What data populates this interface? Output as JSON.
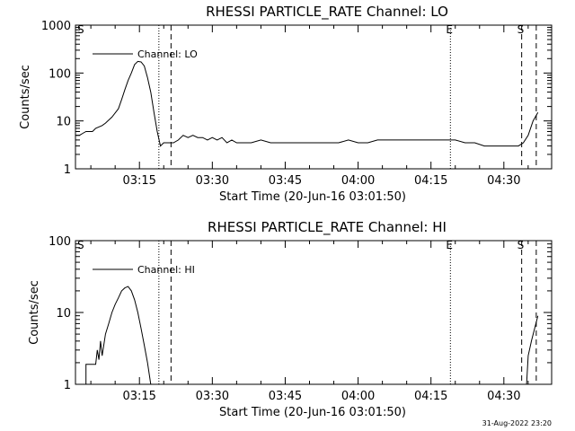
{
  "chart_data": [
    {
      "type": "line",
      "title": "RHESSI PARTICLE_RATE Channel: LO",
      "xlabel": "Start Time (20-Jun-16 03:01:50)",
      "ylabel": "Counts/sec",
      "y_scale": "log",
      "ylim": [
        1,
        1000
      ],
      "xlim": [
        "03:01:50",
        "04:39:50"
      ],
      "x_ticks": [
        "03:15",
        "03:30",
        "03:45",
        "04:00",
        "04:15",
        "04:30"
      ],
      "y_ticks": [
        "1",
        "10",
        "100",
        "1000"
      ],
      "legend": {
        "position": "top-left",
        "entries": [
          "Channel: LO"
        ]
      },
      "grid": false,
      "event_markers": [
        {
          "time": "03:01:50",
          "style": "none",
          "label": "S"
        },
        {
          "time": "03:19:00",
          "style": "dotted",
          "label": ""
        },
        {
          "time": "03:21:30",
          "style": "dashed",
          "label": ""
        },
        {
          "time": "04:19:00",
          "style": "dotted",
          "label": "E"
        },
        {
          "time": "04:33:40",
          "style": "dashed",
          "label": "S"
        },
        {
          "time": "04:36:40",
          "style": "dashed",
          "label": ""
        }
      ],
      "series": [
        {
          "name": "Channel: LO",
          "points": [
            [
              "03:01:50",
              5
            ],
            [
              "03:02:40",
              5
            ],
            [
              "03:03:20",
              5.5
            ],
            [
              "03:04:00",
              6
            ],
            [
              "03:05:20",
              6
            ],
            [
              "03:06:00",
              7
            ],
            [
              "03:07:20",
              8
            ],
            [
              "03:08:00",
              9
            ],
            [
              "03:09:20",
              12
            ],
            [
              "03:10:40",
              18
            ],
            [
              "03:11:20",
              28
            ],
            [
              "03:12:00",
              45
            ],
            [
              "03:12:40",
              70
            ],
            [
              "03:13:20",
              100
            ],
            [
              "03:14:00",
              150
            ],
            [
              "03:14:40",
              175
            ],
            [
              "03:15:20",
              170
            ],
            [
              "03:16:00",
              140
            ],
            [
              "03:16:40",
              80
            ],
            [
              "03:17:20",
              40
            ],
            [
              "03:18:00",
              15
            ],
            [
              "03:18:40",
              6
            ],
            [
              "03:19:20",
              3
            ],
            [
              "03:20:00",
              3.5
            ],
            [
              "03:21:00",
              3.5
            ],
            [
              "03:22:00",
              3.5
            ],
            [
              "03:23:00",
              4
            ],
            [
              "03:24:00",
              5
            ],
            [
              "03:25:00",
              4.5
            ],
            [
              "03:26:00",
              5
            ],
            [
              "03:27:00",
              4.5
            ],
            [
              "03:28:00",
              4.5
            ],
            [
              "03:29:00",
              4
            ],
            [
              "03:30:00",
              4.5
            ],
            [
              "03:31:00",
              4
            ],
            [
              "03:32:00",
              4.5
            ],
            [
              "03:33:00",
              3.5
            ],
            [
              "03:34:00",
              4
            ],
            [
              "03:35:00",
              3.5
            ],
            [
              "03:36:00",
              3.5
            ],
            [
              "03:38:00",
              3.5
            ],
            [
              "03:40:00",
              4
            ],
            [
              "03:42:00",
              3.5
            ],
            [
              "03:44:00",
              3.5
            ],
            [
              "03:46:00",
              3.5
            ],
            [
              "03:48:00",
              3.5
            ],
            [
              "03:50:00",
              3.5
            ],
            [
              "03:52:00",
              3.5
            ],
            [
              "03:54:00",
              3.5
            ],
            [
              "03:56:00",
              3.5
            ],
            [
              "03:58:00",
              4
            ],
            [
              "04:00:00",
              3.5
            ],
            [
              "04:02:00",
              3.5
            ],
            [
              "04:04:00",
              4
            ],
            [
              "04:06:00",
              4
            ],
            [
              "04:08:00",
              4
            ],
            [
              "04:10:00",
              4
            ],
            [
              "04:12:00",
              4
            ],
            [
              "04:14:00",
              4
            ],
            [
              "04:16:00",
              4
            ],
            [
              "04:18:00",
              4
            ],
            [
              "04:20:00",
              4
            ],
            [
              "04:22:00",
              3.5
            ],
            [
              "04:24:00",
              3.5
            ],
            [
              "04:26:00",
              3
            ],
            [
              "04:28:00",
              3
            ],
            [
              "04:30:00",
              3
            ],
            [
              "04:32:00",
              3
            ],
            [
              "04:33:00",
              3
            ],
            [
              "04:34:00",
              3.5
            ],
            [
              "04:35:00",
              5
            ],
            [
              "04:36:00",
              10
            ],
            [
              "04:37:00",
              15
            ]
          ]
        }
      ]
    },
    {
      "type": "line",
      "title": "RHESSI PARTICLE_RATE Channel: HI",
      "xlabel": "Start Time (20-Jun-16 03:01:50)",
      "ylabel": "Counts/sec",
      "y_scale": "log",
      "ylim": [
        1,
        100
      ],
      "xlim": [
        "03:01:50",
        "04:39:50"
      ],
      "x_ticks": [
        "03:15",
        "03:30",
        "03:45",
        "04:00",
        "04:15",
        "04:30"
      ],
      "y_ticks": [
        "1",
        "10",
        "100"
      ],
      "legend": {
        "position": "top-left",
        "entries": [
          "Channel: HI"
        ]
      },
      "grid": false,
      "event_markers": [
        {
          "time": "03:01:50",
          "style": "none",
          "label": "S"
        },
        {
          "time": "03:19:00",
          "style": "dotted",
          "label": ""
        },
        {
          "time": "03:21:30",
          "style": "dashed",
          "label": ""
        },
        {
          "time": "04:19:00",
          "style": "dotted",
          "label": "E"
        },
        {
          "time": "04:33:40",
          "style": "dashed",
          "label": "S"
        },
        {
          "time": "04:36:40",
          "style": "dashed",
          "label": ""
        }
      ],
      "series": [
        {
          "name": "Channel: HI",
          "points": [
            [
              "03:04:00",
              1
            ],
            [
              "03:04:00",
              1.9
            ],
            [
              "03:06:00",
              1.9
            ],
            [
              "03:06:20",
              3
            ],
            [
              "03:06:40",
              2.2
            ],
            [
              "03:07:00",
              4
            ],
            [
              "03:07:20",
              2.5
            ],
            [
              "03:08:00",
              5
            ],
            [
              "03:08:40",
              7
            ],
            [
              "03:09:20",
              10
            ],
            [
              "03:10:00",
              13
            ],
            [
              "03:10:40",
              16
            ],
            [
              "03:11:20",
              20
            ],
            [
              "03:12:00",
              22
            ],
            [
              "03:12:40",
              23
            ],
            [
              "03:13:20",
              20
            ],
            [
              "03:14:00",
              15
            ],
            [
              "03:14:40",
              10
            ],
            [
              "03:15:20",
              6
            ],
            [
              "03:16:00",
              3.5
            ],
            [
              "03:16:40",
              2
            ],
            [
              "03:17:20",
              1
            ]
          ]
        },
        {
          "name": "Channel: HI",
          "points": [
            [
              "04:34:40",
              1
            ],
            [
              "04:35:00",
              2.5
            ],
            [
              "04:35:40",
              4
            ],
            [
              "04:36:20",
              6
            ],
            [
              "04:37:00",
              9
            ]
          ]
        }
      ]
    }
  ],
  "footer": {
    "timestamp": "31-Aug-2022 23:20"
  }
}
